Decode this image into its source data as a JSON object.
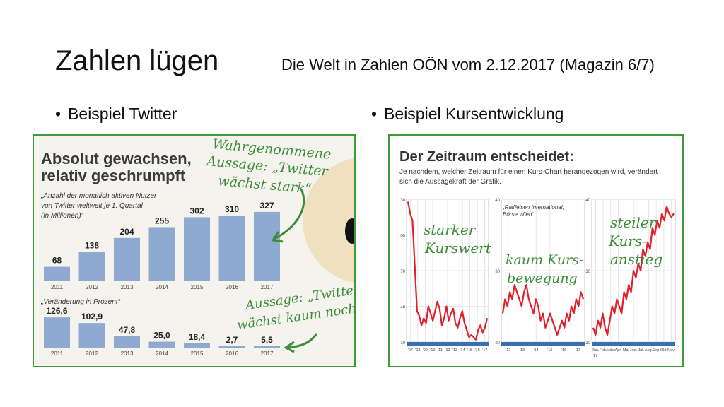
{
  "slide": {
    "title": "Zahlen lügen",
    "subtitle": "Die Welt in Zahlen OÖN vom 2.12.2017 (Magazin 6/7)",
    "bullets": [
      "Beispiel Twitter",
      "Beispiel Kursentwicklung"
    ]
  },
  "twitter": {
    "headline_1": "Absolut gewachsen,",
    "headline_2": "relativ geschrumpft",
    "desc_1": "„Anzahl der monatlich aktiven Nutzer",
    "desc_2": "von Twitter weltweit je 1. Quartal",
    "desc_3": "(in Millionen)“",
    "change_label": "„Veränderung in Prozent“",
    "note_top_1": "Wahrgenommene",
    "note_top_2": "Aussage: „Twitter",
    "note_top_3": "wächst stark“",
    "note_bottom_1": "Aussage: „Twitter",
    "note_bottom_2": "wächst kaum noch“",
    "colors": {
      "bar": "#8faad0",
      "note": "#3d8c3a",
      "panel_bg": "#f5f3ee"
    }
  },
  "kurs": {
    "headline": "Der Zeitraum entscheidet:",
    "desc_1": "Je nachdem, welcher Zeitraum für einen Kurs-Chart herangezogen wird, verändert",
    "desc_2": "sich die Aussagekraft der Grafik.",
    "chart_labels": {
      "c1_line1": "starker",
      "c1_line2": "Kurswert",
      "c2_src1": "„Raiffeisen International,",
      "c2_src2": "Börse Wien“",
      "c2_line1": "kaum Kurs-",
      "c2_line2": "bewegung",
      "c3_line1": "steiler",
      "c3_line2": "Kurs-",
      "c3_line3": "anstieg"
    },
    "colors": {
      "line": "#e0202a",
      "axis": "#3a6fb0",
      "note": "#3d8c3a"
    }
  },
  "chart_data": [
    {
      "type": "bar",
      "categories": [
        "2011",
        "2012",
        "2013",
        "2014",
        "2015",
        "2016",
        "2017"
      ],
      "values": [
        68,
        138,
        204,
        255,
        302,
        310,
        327
      ],
      "ylim": [
        0,
        340
      ]
    },
    {
      "type": "bar",
      "categories": [
        "2011",
        "2012",
        "2013",
        "2014",
        "2015",
        "2016",
        "2017"
      ],
      "values": [
        126.6,
        102.9,
        47.8,
        25.0,
        18.4,
        2.7,
        5.5
      ],
      "value_labels": [
        "126,6",
        "102,9",
        "47,8",
        "25,0",
        "18,4",
        "2,7",
        "5,5"
      ],
      "ylim": [
        0,
        130
      ]
    },
    {
      "type": "line",
      "ylim": [
        10,
        130
      ],
      "y_ticks": [
        "130",
        "100",
        "70",
        "40",
        "10"
      ],
      "x_ticks": [
        "'07",
        "'08",
        "'09",
        "'10",
        "'11",
        "'12",
        "'13",
        "'14",
        "'15",
        "'16",
        "'17"
      ],
      "values": [
        128,
        118,
        112,
        75,
        36,
        32,
        24,
        30,
        26,
        40,
        34,
        28,
        36,
        44,
        38,
        24,
        30,
        40,
        28,
        34,
        38,
        26,
        22,
        30,
        36,
        26,
        20,
        14,
        16,
        14,
        12,
        20,
        24,
        18,
        22,
        30
      ]
    },
    {
      "type": "line",
      "ylim": [
        20,
        40
      ],
      "y_ticks": [
        "40",
        "30",
        "20"
      ],
      "x_ticks": [
        "'12",
        "'13",
        "'14",
        "'15",
        "'16",
        "'17"
      ],
      "values": [
        24,
        26,
        25,
        27,
        26,
        28,
        27,
        26,
        25,
        27,
        28,
        26,
        25,
        24,
        26,
        25,
        23,
        24,
        22,
        23,
        24,
        23,
        22,
        21,
        22,
        23,
        22,
        24,
        23,
        25,
        24,
        26,
        25,
        27,
        26
      ]
    },
    {
      "type": "line",
      "ylim": [
        20,
        40
      ],
      "y_ticks": [
        "40",
        "30",
        "20"
      ],
      "x_ticks": [
        "Jän.",
        "Feb.",
        "März",
        "Apr.",
        "Mai",
        "Jun.",
        "Jul.",
        "Aug.",
        "Sep.",
        "Okt.",
        "Nov."
      ],
      "x_note": "17",
      "values": [
        22,
        21,
        23,
        22,
        24,
        22,
        21,
        23,
        25,
        24,
        26,
        25,
        24,
        27,
        26,
        28,
        27,
        30,
        29,
        31,
        30,
        33,
        32,
        34,
        33,
        36,
        35,
        37,
        36,
        38,
        37,
        39,
        38,
        37.5,
        38
      ]
    }
  ]
}
